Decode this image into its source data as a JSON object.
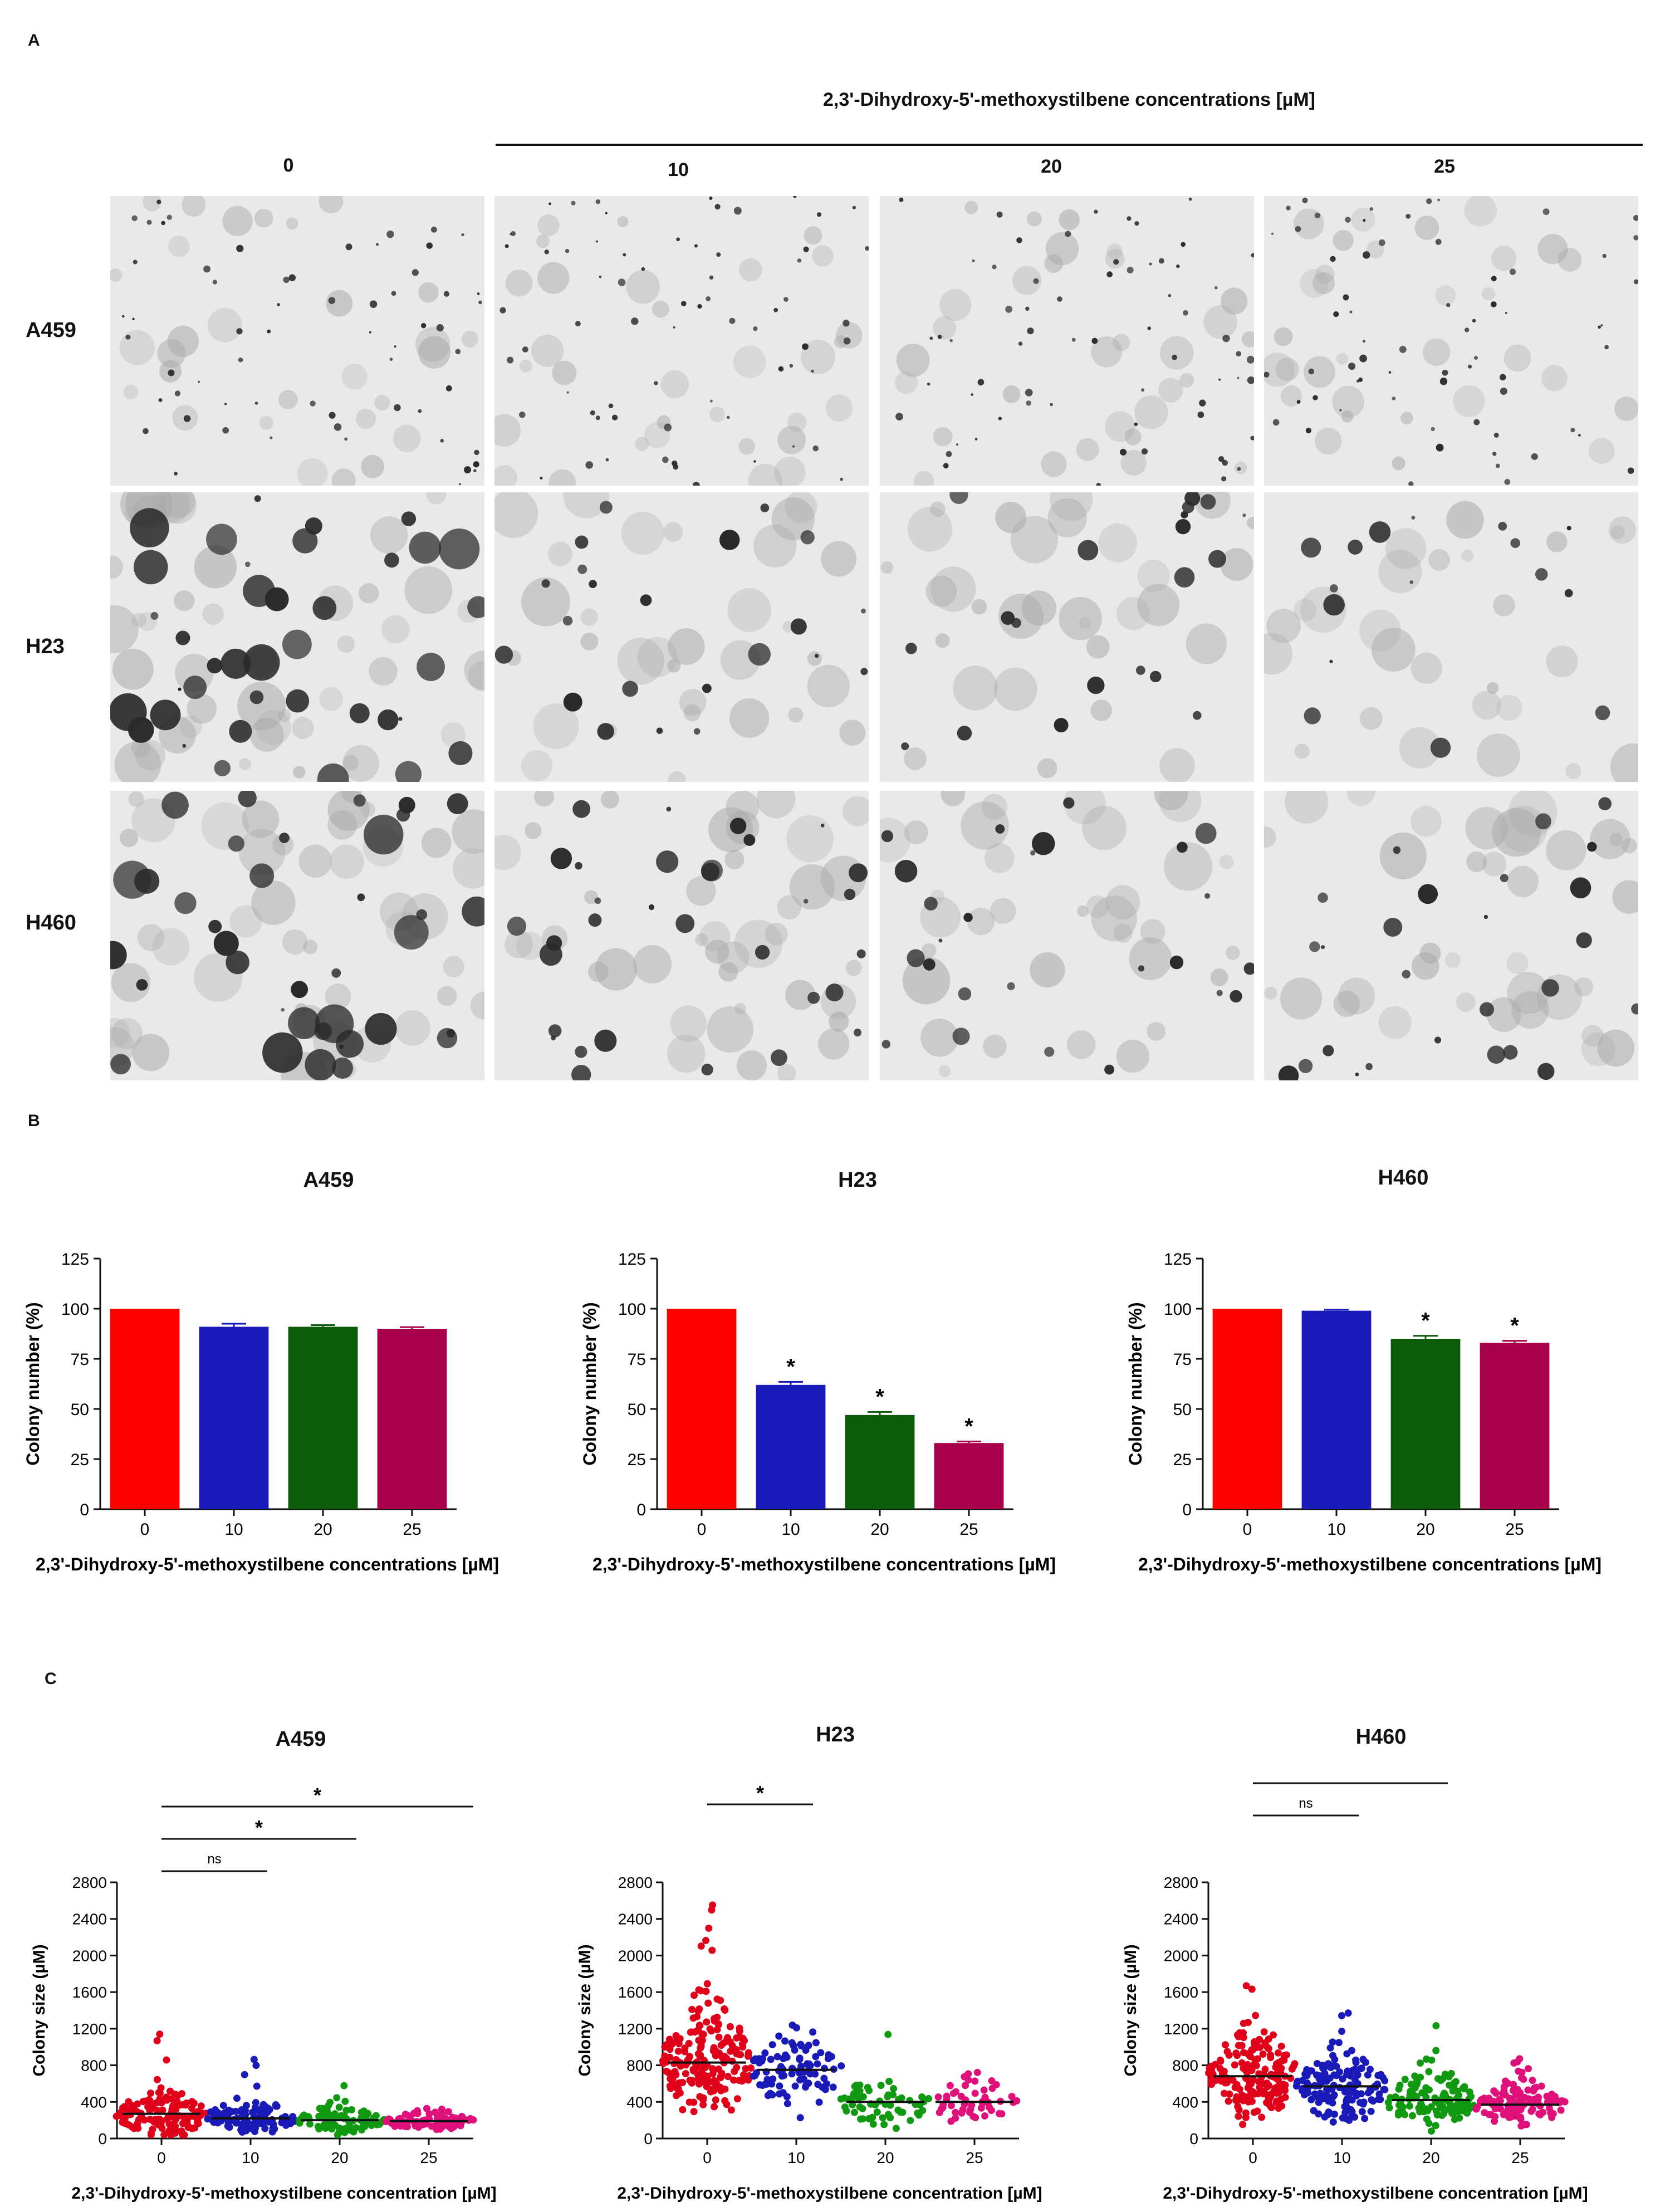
{
  "panel_labels": [
    "A",
    "B",
    "C"
  ],
  "panelA": {
    "header_title": "2,3'-Dihydroxy-5'-methoxystilbene concentrations [µM]",
    "column_headers": [
      "0",
      "10",
      "20",
      "25"
    ],
    "row_labels": [
      "A459",
      "H23",
      "H460"
    ],
    "cell_density": [
      [
        0.35,
        0.45,
        0.4,
        0.45
      ],
      [
        1.0,
        0.45,
        0.4,
        0.25
      ],
      [
        0.95,
        0.8,
        0.55,
        0.6
      ]
    ],
    "colors": {
      "background": "#e8e8e8",
      "colony": "#2a2a2a",
      "halo": "#a9a9a9"
    }
  },
  "chart_data": [
    {
      "type": "bar",
      "title": "A459",
      "categories": [
        "0",
        "10",
        "20",
        "25"
      ],
      "values": [
        100,
        91,
        91,
        90
      ],
      "errors": [
        0,
        1.5,
        0.8,
        0.8
      ],
      "significance": [
        "",
        "",
        "",
        ""
      ],
      "colors": [
        "#ff0000",
        "#1a1ab8",
        "#0c5c0c",
        "#a8004a"
      ],
      "xlabel": "2,3'-Dihydroxy-5'-methoxystilbene concentrations [µM]",
      "ylabel": "Colony number (%)",
      "ylim": [
        0,
        125
      ],
      "yticks": [
        "0",
        "25",
        "50",
        "75",
        "100",
        "125"
      ]
    },
    {
      "type": "bar",
      "title": "H23",
      "categories": [
        "0",
        "10",
        "20",
        "25"
      ],
      "values": [
        100,
        62,
        47,
        33
      ],
      "errors": [
        0,
        1.5,
        1.5,
        0.8
      ],
      "significance": [
        "",
        "*",
        "*",
        "*"
      ],
      "colors": [
        "#ff0000",
        "#1a1ab8",
        "#0c5c0c",
        "#a8004a"
      ],
      "xlabel": "2,3'-Dihydroxy-5'-methoxystilbene concentrations [µM]",
      "ylabel": "Colony number (%)",
      "ylim": [
        0,
        125
      ],
      "yticks": [
        "0",
        "25",
        "50",
        "75",
        "100",
        "125"
      ]
    },
    {
      "type": "bar",
      "title": "H460",
      "categories": [
        "0",
        "10",
        "20",
        "25"
      ],
      "values": [
        100,
        99,
        85,
        83
      ],
      "errors": [
        0,
        0.5,
        1.5,
        1.0
      ],
      "significance": [
        "",
        "",
        "*",
        "*"
      ],
      "colors": [
        "#ff0000",
        "#1a1ab8",
        "#0c5c0c",
        "#a8004a"
      ],
      "xlabel": "2,3'-Dihydroxy-5'-methoxystilbene concentrations [µM]",
      "ylabel": "Colony number (%)",
      "ylim": [
        0,
        125
      ],
      "yticks": [
        "0",
        "25",
        "50",
        "75",
        "100",
        "125"
      ]
    },
    {
      "type": "scatter",
      "title": "A459",
      "categories": [
        "0",
        "10",
        "20",
        "25"
      ],
      "means": [
        270,
        220,
        200,
        190
      ],
      "max_values": [
        1300,
        950,
        600,
        470
      ],
      "spread": [
        280,
        200,
        140,
        110
      ],
      "n_points": [
        130,
        110,
        90,
        85
      ],
      "comparisons": [
        {
          "from": "0",
          "to": "10",
          "label": "ns"
        },
        {
          "from": "0",
          "to": "20",
          "label": "*"
        },
        {
          "from": "0",
          "to": "25",
          "label": "*"
        }
      ],
      "colors": [
        "#e0001a",
        "#1a1ab8",
        "#119911",
        "#e0107a"
      ],
      "xlabel": "2,3'-Dihydroxy-5'-methoxystilbene concentration [µM]",
      "ylabel": "Colony size (µM)",
      "ylim": [
        0,
        2800
      ],
      "yticks": [
        "0",
        "400",
        "800",
        "1200",
        "1600",
        "2000",
        "2400",
        "2800"
      ]
    },
    {
      "type": "scatter",
      "title": "H23",
      "categories": [
        "0",
        "10",
        "20",
        "25"
      ],
      "means": [
        830,
        750,
        400,
        400
      ],
      "max_values": [
        2600,
        1500,
        1150,
        1000
      ],
      "spread": [
        650,
        450,
        300,
        280
      ],
      "n_points": [
        200,
        90,
        60,
        50
      ],
      "comparisons": [
        {
          "from": "0",
          "to": "10",
          "label": "*"
        },
        {
          "from": "0",
          "to": "20",
          "label": "*"
        },
        {
          "from": "0",
          "to": "25",
          "label": "*"
        }
      ],
      "colors": [
        "#e0001a",
        "#1a1ab8",
        "#119911",
        "#e0107a"
      ],
      "xlabel": "2,3'-Dihydroxy-5'-methoxystilbene concentration [µM]",
      "ylabel": "Colony size (µM)",
      "ylim": [
        0,
        2800
      ],
      "yticks": [
        "0",
        "400",
        "800",
        "1200",
        "1600",
        "2000",
        "2400",
        "2800"
      ]
    },
    {
      "type": "scatter",
      "title": "H460",
      "categories": [
        "0",
        "10",
        "20",
        "25"
      ],
      "means": [
        680,
        570,
        420,
        370
      ],
      "max_values": [
        1700,
        1500,
        1250,
        900
      ],
      "spread": [
        500,
        420,
        320,
        250
      ],
      "n_points": [
        180,
        150,
        120,
        110
      ],
      "comparisons": [
        {
          "from": "0",
          "to": "10",
          "label": "ns"
        },
        {
          "from": "0",
          "to": "20",
          "label": "*"
        },
        {
          "from": "0",
          "to": "25",
          "label": "*"
        }
      ],
      "colors": [
        "#e0001a",
        "#1a1ab8",
        "#119911",
        "#e0107a"
      ],
      "xlabel": "2,3'-Dihydroxy-5'-methoxystilbene concentration [µM]",
      "ylabel": "Colony size (µM)",
      "ylim": [
        0,
        2800
      ],
      "yticks": [
        "0",
        "400",
        "800",
        "1200",
        "1600",
        "2000",
        "2400",
        "2800"
      ]
    }
  ]
}
